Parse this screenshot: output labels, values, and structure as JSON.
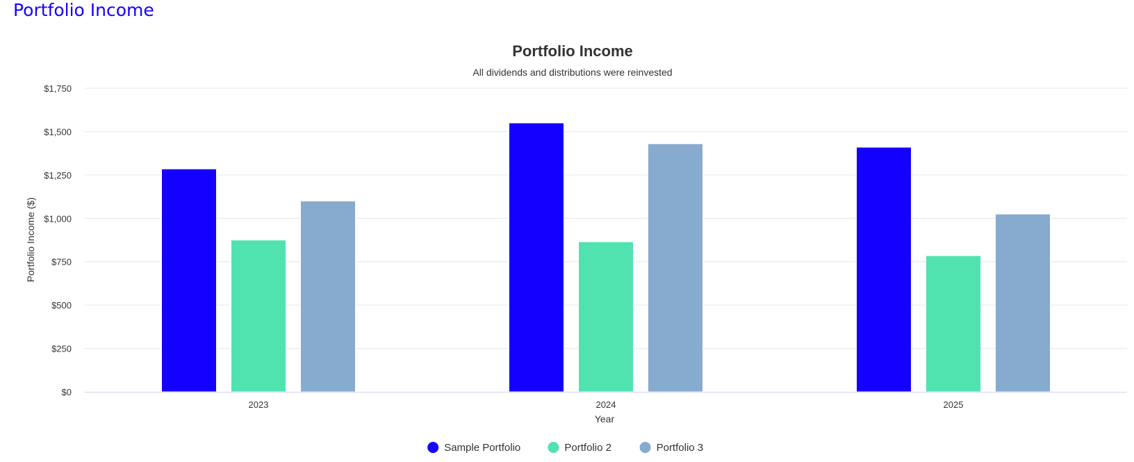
{
  "page": {
    "heading": "Portfolio Income"
  },
  "chart_data": {
    "type": "bar",
    "title": "Portfolio Income",
    "subtitle": "All dividends and distributions were reinvested",
    "xlabel": "Year",
    "ylabel": "Portfolio Income ($)",
    "categories": [
      "2023",
      "2024",
      "2025"
    ],
    "ylim": [
      0,
      1750
    ],
    "yticks": [
      0,
      250,
      500,
      750,
      1000,
      1250,
      1500,
      1750
    ],
    "ytick_labels": [
      "$0",
      "$250",
      "$500",
      "$750",
      "$1,000",
      "$1,250",
      "$1,500",
      "$1,750"
    ],
    "grid": true,
    "legend_position": "bottom-center",
    "series": [
      {
        "name": "Sample Portfolio",
        "color": "#1400ff",
        "values": [
          1285,
          1550,
          1410
        ]
      },
      {
        "name": "Portfolio 2",
        "color": "#50e3b0",
        "values": [
          875,
          865,
          785
        ]
      },
      {
        "name": "Portfolio 3",
        "color": "#87aacf",
        "values": [
          1100,
          1430,
          1025
        ]
      }
    ]
  }
}
